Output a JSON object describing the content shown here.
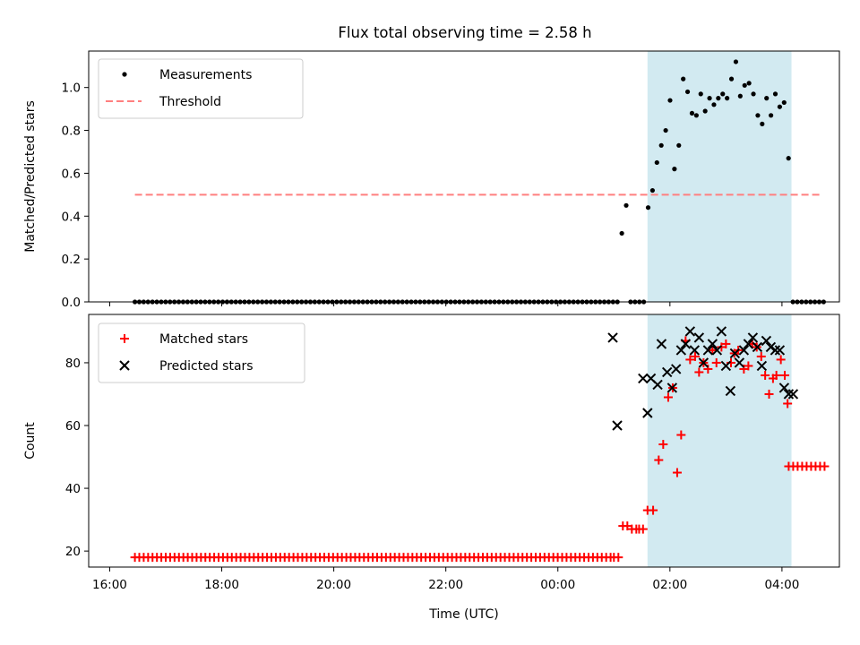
{
  "figure_title": "Flux total observing time = 2.58 h",
  "x_axis": {
    "label": "Time (UTC)",
    "tick_labels": [
      "16:00",
      "18:00",
      "20:00",
      "22:00",
      "00:00",
      "02:00",
      "04:00"
    ]
  },
  "chart_data": [
    {
      "type": "scatter",
      "panel": "top",
      "ylabel": "Matched/Predicted stars",
      "xlim": [
        -0.375,
        13.025
      ],
      "ylim": [
        0,
        1.17
      ],
      "yticks": [
        0.0,
        0.2,
        0.4,
        0.6,
        0.8,
        1.0
      ],
      "ytick_labels": [
        "0.0",
        "0.2",
        "0.4",
        "0.6",
        "0.8",
        "1.0"
      ],
      "x_unit": "hours since 16:00 UTC",
      "highlight_span": {
        "x_start": 9.6,
        "x_end": 12.17,
        "color": "#add8e6"
      },
      "legend": {
        "placement": "upper left",
        "entries": [
          "Measurements",
          "Threshold"
        ]
      },
      "threshold": {
        "name": "Threshold",
        "y": 0.5,
        "x_start": 0.45,
        "x_end": 12.72,
        "color": "#ff7f7f",
        "style": "dashed"
      },
      "series": [
        {
          "name": "Measurements",
          "marker": "dot",
          "color": "#000000",
          "x_start": 0.45,
          "x_step": 0.0783,
          "values": [
            0,
            0,
            0,
            0,
            0,
            0,
            0,
            0,
            0,
            0,
            0,
            0,
            0,
            0,
            0,
            0,
            0,
            0,
            0,
            0,
            0,
            0,
            0,
            0,
            0,
            0,
            0,
            0,
            0,
            0,
            0,
            0,
            0,
            0,
            0,
            0,
            0,
            0,
            0,
            0,
            0,
            0,
            0,
            0,
            0,
            0,
            0,
            0,
            0,
            0,
            0,
            0,
            0,
            0,
            0,
            0,
            0,
            0,
            0,
            0,
            0,
            0,
            0,
            0,
            0,
            0,
            0,
            0,
            0,
            0,
            0,
            0,
            0,
            0,
            0,
            0,
            0,
            0,
            0,
            0,
            0,
            0,
            0,
            0,
            0,
            0,
            0,
            0,
            0,
            0,
            0,
            0,
            0,
            0,
            0,
            0,
            0,
            0,
            0,
            0,
            0,
            0,
            0,
            0,
            0,
            0,
            0,
            0,
            0,
            0,
            0,
            0.32,
            0.45,
            0,
            0,
            0,
            0,
            0.44,
            0.52,
            0.65,
            0.73,
            0.8,
            0.94,
            0.62,
            0.73,
            1.04,
            0.98,
            0.88,
            0.87,
            0.97,
            0.89,
            0.95,
            0.92,
            0.95,
            0.97,
            0.95,
            1.04,
            1.12,
            0.96,
            1.01,
            1.02,
            0.97,
            0.87,
            0.83,
            0.95,
            0.87,
            0.97,
            0.91,
            0.93,
            0.67,
            0,
            0,
            0,
            0,
            0,
            0,
            0,
            0
          ]
        }
      ]
    },
    {
      "type": "scatter",
      "panel": "bottom",
      "ylabel": "Count",
      "xlim": [
        -0.375,
        13.025
      ],
      "ylim": [
        14.9,
        95.4
      ],
      "yticks": [
        20,
        40,
        60,
        80
      ],
      "ytick_labels": [
        "20",
        "40",
        "60",
        "80"
      ],
      "x_unit": "hours since 16:00 UTC",
      "highlight_span": {
        "x_start": 9.6,
        "x_end": 12.17,
        "color": "#add8e6"
      },
      "legend": {
        "placement": "upper left",
        "entries": [
          "Matched stars",
          "Predicted stars"
        ]
      },
      "series": [
        {
          "name": "Matched stars",
          "marker": "plus",
          "color": "#ff0000",
          "x": [
            0.45,
            0.5286,
            0.6072,
            0.6859,
            0.7645,
            0.8431,
            0.9217,
            1.0003,
            1.0789,
            1.1576,
            1.2362,
            1.3148,
            1.3934,
            1.472,
            1.5507,
            1.6293,
            1.7079,
            1.7865,
            1.8651,
            1.9438,
            2.0224,
            2.101,
            2.1796,
            2.2582,
            2.3368,
            2.4155,
            2.4941,
            2.5727,
            2.6513,
            2.7299,
            2.8086,
            2.8872,
            2.9658,
            3.0444,
            3.123,
            3.2017,
            3.2803,
            3.3589,
            3.4375,
            3.5161,
            3.5947,
            3.6734,
            3.752,
            3.8306,
            3.9092,
            3.9878,
            4.0665,
            4.1451,
            4.2237,
            4.3023,
            4.3809,
            4.4596,
            4.5382,
            4.6168,
            4.6954,
            4.774,
            4.8526,
            4.9313,
            5.0099,
            5.0885,
            5.1671,
            5.2457,
            5.3244,
            5.403,
            5.4816,
            5.5602,
            5.6388,
            5.7175,
            5.7961,
            5.8747,
            5.9533,
            6.0319,
            6.1105,
            6.1892,
            6.2678,
            6.3464,
            6.425,
            6.5036,
            6.5823,
            6.6609,
            6.7395,
            6.8181,
            6.8967,
            6.9754,
            7.054,
            7.1326,
            7.2112,
            7.2898,
            7.3684,
            7.4471,
            7.5257,
            7.6043,
            7.6829,
            7.7615,
            7.8402,
            7.9188,
            7.9974,
            8.076,
            8.1546,
            8.2333,
            8.3119,
            8.3905,
            8.4691,
            8.5477,
            8.6263,
            8.705,
            8.7836,
            8.8622,
            8.9408,
            9.0,
            9.08,
            9.16,
            9.24,
            9.32,
            9.4,
            9.45,
            9.52,
            9.6,
            9.7,
            9.8,
            9.88,
            9.97,
            10.05,
            10.13,
            10.2,
            10.28,
            10.36,
            10.45,
            10.52,
            10.6,
            10.68,
            10.76,
            10.83,
            10.92,
            11.0,
            11.09,
            11.15,
            11.22,
            11.32,
            11.4,
            11.47,
            11.55,
            11.63,
            11.7,
            11.77,
            11.84,
            11.9,
            11.98,
            12.05,
            12.1,
            12.12,
            12.2,
            12.28,
            12.36,
            12.44,
            12.52,
            12.6,
            12.68,
            12.76
          ],
          "values": [
            18,
            18,
            18,
            18,
            18,
            18,
            18,
            18,
            18,
            18,
            18,
            18,
            18,
            18,
            18,
            18,
            18,
            18,
            18,
            18,
            18,
            18,
            18,
            18,
            18,
            18,
            18,
            18,
            18,
            18,
            18,
            18,
            18,
            18,
            18,
            18,
            18,
            18,
            18,
            18,
            18,
            18,
            18,
            18,
            18,
            18,
            18,
            18,
            18,
            18,
            18,
            18,
            18,
            18,
            18,
            18,
            18,
            18,
            18,
            18,
            18,
            18,
            18,
            18,
            18,
            18,
            18,
            18,
            18,
            18,
            18,
            18,
            18,
            18,
            18,
            18,
            18,
            18,
            18,
            18,
            18,
            18,
            18,
            18,
            18,
            18,
            18,
            18,
            18,
            18,
            18,
            18,
            18,
            18,
            18,
            18,
            18,
            18,
            18,
            18,
            18,
            18,
            18,
            18,
            18,
            18,
            18,
            18,
            18,
            18,
            18,
            28,
            28,
            27,
            27,
            27,
            27,
            33,
            33,
            49,
            54,
            69,
            72,
            45,
            57,
            87,
            81,
            82,
            77,
            80,
            78,
            84,
            80,
            85,
            86,
            80,
            83,
            84,
            78,
            79,
            86,
            85,
            82,
            76,
            70,
            75,
            76,
            81,
            76,
            67,
            47,
            47,
            47,
            47,
            47,
            47,
            47,
            47,
            47
          ]
        },
        {
          "name": "Predicted stars",
          "marker": "x",
          "color": "#000000",
          "x": [
            8.98,
            9.06,
            9.52,
            9.6,
            9.66,
            9.78,
            9.85,
            9.95,
            10.04,
            10.11,
            10.2,
            10.28,
            10.36,
            10.44,
            10.52,
            10.6,
            10.68,
            10.76,
            10.84,
            10.92,
            11.0,
            11.08,
            11.16,
            11.24,
            11.32,
            11.4,
            11.48,
            11.56,
            11.64,
            11.72,
            11.8,
            11.88,
            11.96,
            12.04,
            12.12,
            12.2
          ],
          "values": [
            88,
            60,
            75,
            64,
            75,
            73,
            86,
            77,
            72,
            78,
            84,
            86,
            90,
            84,
            88,
            80,
            84,
            86,
            84,
            90,
            79,
            71,
            83,
            80,
            84,
            86,
            88,
            85,
            79,
            87,
            85,
            84,
            84,
            72,
            70,
            70
          ]
        }
      ]
    }
  ]
}
